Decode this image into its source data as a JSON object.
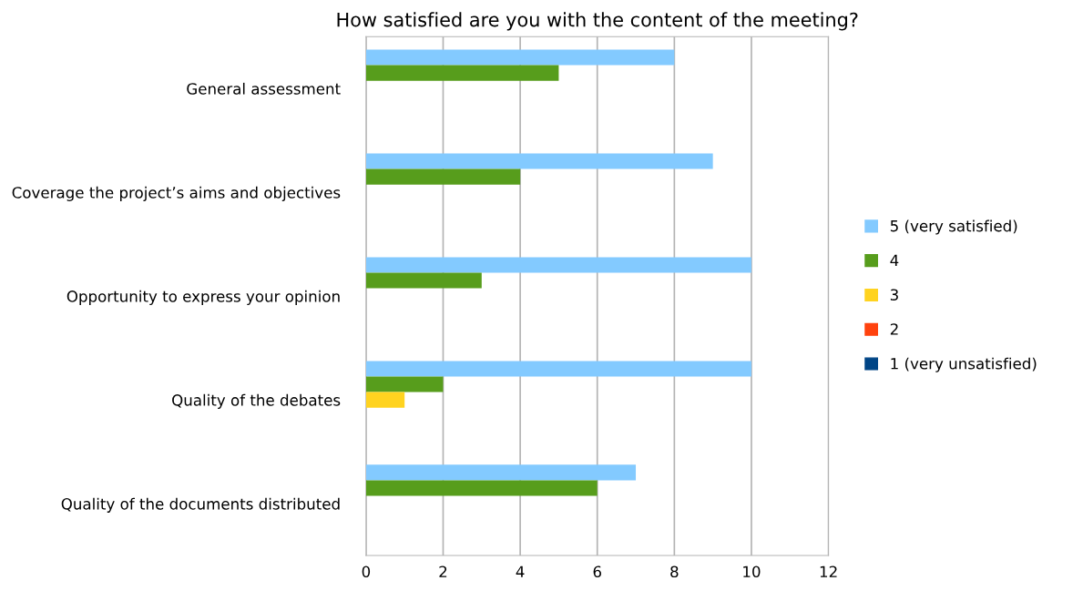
{
  "chart_data": {
    "type": "bar",
    "orientation": "horizontal",
    "title": "How satisfied are you with the content of the meeting?",
    "categories": [
      "General assessment",
      "Coverage the project’s aims and objectives",
      "Opportunity to express your opinion",
      "Quality of the debates",
      "Quality of the documents distributed"
    ],
    "series": [
      {
        "name": "5 (very satisfied)",
        "color": "#83caff",
        "values": [
          8,
          9,
          10,
          10,
          7
        ]
      },
      {
        "name": "4",
        "color": "#579d1c",
        "values": [
          5,
          4,
          3,
          2,
          6
        ]
      },
      {
        "name": "3",
        "color": "#ffd320",
        "values": [
          0,
          0,
          0,
          1,
          0
        ]
      },
      {
        "name": "2",
        "color": "#ff420e",
        "values": [
          0,
          0,
          0,
          0,
          0
        ]
      },
      {
        "name": "1 (very unsatisfied)",
        "color": "#004586",
        "values": [
          0,
          0,
          0,
          0,
          0
        ]
      }
    ],
    "xlim": [
      0,
      12
    ],
    "xticks": [
      0,
      2,
      4,
      6,
      8,
      10,
      12
    ],
    "grid": "x",
    "legend": "right"
  }
}
